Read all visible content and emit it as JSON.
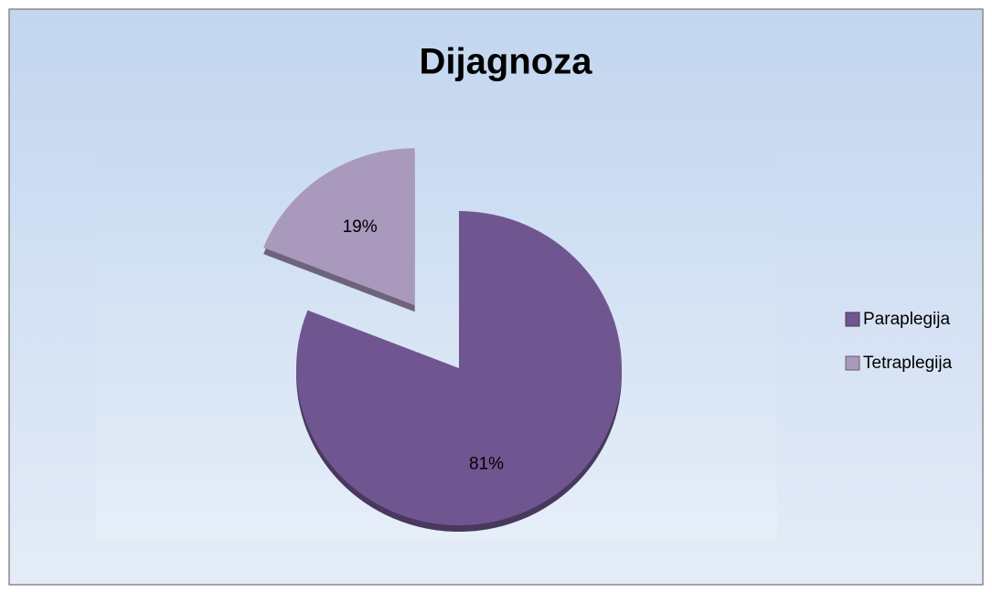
{
  "chart_data": {
    "type": "pie",
    "title": "Dijagnoza",
    "categories": [
      "Paraplegija",
      "Tetraplegija"
    ],
    "values": [
      81,
      19
    ],
    "value_labels": [
      "81%",
      "19%"
    ],
    "colors": [
      "#705690",
      "#a899bd"
    ],
    "legend": "right"
  }
}
